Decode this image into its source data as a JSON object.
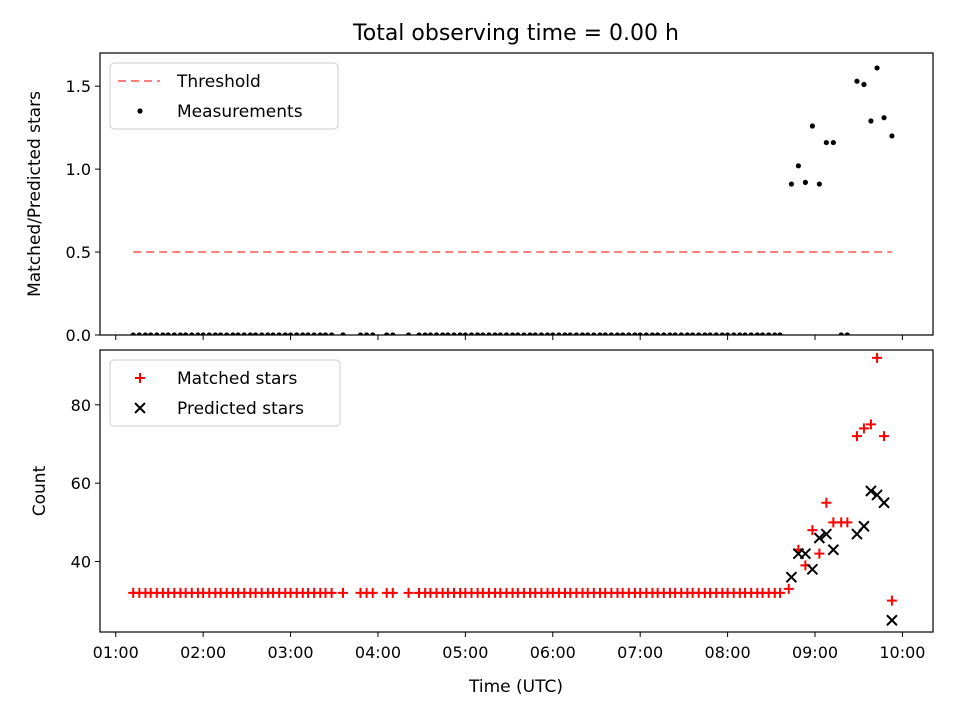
{
  "chart_data": [
    {
      "panel": "top",
      "type": "scatter",
      "title": "Total observing time = 0.00 h",
      "xlabel": "",
      "ylabel": "Matched/Predicted stars",
      "x_unit": "hours UTC",
      "xlim": [
        0.82,
        10.35
      ],
      "ylim": [
        0.0,
        1.7
      ],
      "yticks": [
        0.0,
        0.5,
        1.0,
        1.5
      ],
      "ytick_labels": [
        "0.0",
        "0.5",
        "1.0",
        "1.5"
      ],
      "xtick_labels_visible": false,
      "legend": {
        "position": "upper left",
        "entries": [
          "Threshold",
          "Measurements"
        ]
      },
      "series": [
        {
          "name": "Threshold",
          "kind": "line",
          "style": "dashed",
          "color": "#ff7f7f",
          "x": [
            1.2,
            9.88
          ],
          "y": [
            0.5,
            0.5
          ]
        },
        {
          "name": "Measurements",
          "kind": "points",
          "color": "#000000",
          "points": [
            [
              1.2,
              0
            ],
            [
              1.27,
              0
            ],
            [
              1.34,
              0
            ],
            [
              1.4,
              0
            ],
            [
              1.47,
              0
            ],
            [
              1.54,
              0
            ],
            [
              1.6,
              0
            ],
            [
              1.67,
              0
            ],
            [
              1.74,
              0
            ],
            [
              1.8,
              0
            ],
            [
              1.87,
              0
            ],
            [
              1.94,
              0
            ],
            [
              2.0,
              0
            ],
            [
              2.07,
              0
            ],
            [
              2.14,
              0
            ],
            [
              2.2,
              0
            ],
            [
              2.27,
              0
            ],
            [
              2.34,
              0
            ],
            [
              2.4,
              0
            ],
            [
              2.47,
              0
            ],
            [
              2.54,
              0
            ],
            [
              2.6,
              0
            ],
            [
              2.67,
              0
            ],
            [
              2.74,
              0
            ],
            [
              2.8,
              0
            ],
            [
              2.87,
              0
            ],
            [
              2.94,
              0
            ],
            [
              3.0,
              0
            ],
            [
              3.07,
              0
            ],
            [
              3.14,
              0
            ],
            [
              3.2,
              0
            ],
            [
              3.27,
              0
            ],
            [
              3.34,
              0
            ],
            [
              3.4,
              0
            ],
            [
              3.47,
              0
            ],
            [
              3.6,
              0
            ],
            [
              3.8,
              0
            ],
            [
              3.87,
              0
            ],
            [
              3.94,
              0
            ],
            [
              4.1,
              0
            ],
            [
              4.17,
              0
            ],
            [
              4.35,
              0
            ],
            [
              4.47,
              0
            ],
            [
              4.54,
              0
            ],
            [
              4.6,
              0
            ],
            [
              4.67,
              0
            ],
            [
              4.74,
              0
            ],
            [
              4.8,
              0
            ],
            [
              4.87,
              0
            ],
            [
              4.94,
              0
            ],
            [
              5.0,
              0
            ],
            [
              5.07,
              0
            ],
            [
              5.14,
              0
            ],
            [
              5.2,
              0
            ],
            [
              5.27,
              0
            ],
            [
              5.34,
              0
            ],
            [
              5.4,
              0
            ],
            [
              5.47,
              0
            ],
            [
              5.54,
              0
            ],
            [
              5.6,
              0
            ],
            [
              5.67,
              0
            ],
            [
              5.74,
              0
            ],
            [
              5.8,
              0
            ],
            [
              5.87,
              0
            ],
            [
              5.94,
              0
            ],
            [
              6.0,
              0
            ],
            [
              6.07,
              0
            ],
            [
              6.14,
              0
            ],
            [
              6.2,
              0
            ],
            [
              6.27,
              0
            ],
            [
              6.34,
              0
            ],
            [
              6.4,
              0
            ],
            [
              6.47,
              0
            ],
            [
              6.54,
              0
            ],
            [
              6.6,
              0
            ],
            [
              6.67,
              0
            ],
            [
              6.74,
              0
            ],
            [
              6.8,
              0
            ],
            [
              6.87,
              0
            ],
            [
              6.94,
              0
            ],
            [
              7.0,
              0
            ],
            [
              7.07,
              0
            ],
            [
              7.14,
              0
            ],
            [
              7.2,
              0
            ],
            [
              7.27,
              0
            ],
            [
              7.34,
              0
            ],
            [
              7.4,
              0
            ],
            [
              7.47,
              0
            ],
            [
              7.54,
              0
            ],
            [
              7.6,
              0
            ],
            [
              7.67,
              0
            ],
            [
              7.74,
              0
            ],
            [
              7.8,
              0
            ],
            [
              7.87,
              0
            ],
            [
              7.94,
              0
            ],
            [
              8.0,
              0
            ],
            [
              8.07,
              0
            ],
            [
              8.14,
              0
            ],
            [
              8.2,
              0
            ],
            [
              8.27,
              0
            ],
            [
              8.34,
              0
            ],
            [
              8.4,
              0
            ],
            [
              8.47,
              0
            ],
            [
              8.54,
              0
            ],
            [
              8.6,
              0
            ],
            [
              9.3,
              0
            ],
            [
              9.37,
              0
            ],
            [
              8.73,
              0.91
            ],
            [
              8.81,
              1.02
            ],
            [
              8.89,
              0.92
            ],
            [
              8.97,
              1.26
            ],
            [
              9.05,
              0.91
            ],
            [
              9.13,
              1.16
            ],
            [
              9.21,
              1.16
            ],
            [
              9.48,
              1.53
            ],
            [
              9.56,
              1.51
            ],
            [
              9.64,
              1.29
            ],
            [
              9.71,
              1.61
            ],
            [
              9.79,
              1.31
            ],
            [
              9.88,
              1.2
            ]
          ]
        }
      ]
    },
    {
      "panel": "bottom",
      "type": "scatter",
      "title": "",
      "xlabel": "Time (UTC)",
      "ylabel": "Count",
      "x_unit": "hours UTC",
      "xlim": [
        0.82,
        10.35
      ],
      "ylim": [
        22,
        94
      ],
      "yticks": [
        40,
        60,
        80
      ],
      "ytick_labels": [
        "40",
        "60",
        "80"
      ],
      "xticks": [
        1,
        2,
        3,
        4,
        5,
        6,
        7,
        8,
        9,
        10
      ],
      "xtick_labels": [
        "01:00",
        "02:00",
        "03:00",
        "04:00",
        "05:00",
        "06:00",
        "07:00",
        "08:00",
        "09:00",
        "10:00"
      ],
      "legend": {
        "position": "upper left",
        "entries": [
          "Matched stars",
          "Predicted stars"
        ]
      },
      "series": [
        {
          "name": "Matched stars",
          "marker": "plus",
          "color": "#ff0000",
          "points": [
            [
              1.2,
              32
            ],
            [
              1.27,
              32
            ],
            [
              1.34,
              32
            ],
            [
              1.4,
              32
            ],
            [
              1.47,
              32
            ],
            [
              1.54,
              32
            ],
            [
              1.6,
              32
            ],
            [
              1.67,
              32
            ],
            [
              1.74,
              32
            ],
            [
              1.8,
              32
            ],
            [
              1.87,
              32
            ],
            [
              1.94,
              32
            ],
            [
              2.0,
              32
            ],
            [
              2.07,
              32
            ],
            [
              2.14,
              32
            ],
            [
              2.2,
              32
            ],
            [
              2.27,
              32
            ],
            [
              2.34,
              32
            ],
            [
              2.4,
              32
            ],
            [
              2.47,
              32
            ],
            [
              2.54,
              32
            ],
            [
              2.6,
              32
            ],
            [
              2.67,
              32
            ],
            [
              2.74,
              32
            ],
            [
              2.8,
              32
            ],
            [
              2.87,
              32
            ],
            [
              2.94,
              32
            ],
            [
              3.0,
              32
            ],
            [
              3.07,
              32
            ],
            [
              3.14,
              32
            ],
            [
              3.2,
              32
            ],
            [
              3.27,
              32
            ],
            [
              3.34,
              32
            ],
            [
              3.4,
              32
            ],
            [
              3.47,
              32
            ],
            [
              3.6,
              32
            ],
            [
              3.8,
              32
            ],
            [
              3.87,
              32
            ],
            [
              3.94,
              32
            ],
            [
              4.1,
              32
            ],
            [
              4.17,
              32
            ],
            [
              4.35,
              32
            ],
            [
              4.47,
              32
            ],
            [
              4.54,
              32
            ],
            [
              4.6,
              32
            ],
            [
              4.67,
              32
            ],
            [
              4.74,
              32
            ],
            [
              4.8,
              32
            ],
            [
              4.87,
              32
            ],
            [
              4.94,
              32
            ],
            [
              5.0,
              32
            ],
            [
              5.07,
              32
            ],
            [
              5.14,
              32
            ],
            [
              5.2,
              32
            ],
            [
              5.27,
              32
            ],
            [
              5.34,
              32
            ],
            [
              5.4,
              32
            ],
            [
              5.47,
              32
            ],
            [
              5.54,
              32
            ],
            [
              5.6,
              32
            ],
            [
              5.67,
              32
            ],
            [
              5.74,
              32
            ],
            [
              5.8,
              32
            ],
            [
              5.87,
              32
            ],
            [
              5.94,
              32
            ],
            [
              6.0,
              32
            ],
            [
              6.07,
              32
            ],
            [
              6.14,
              32
            ],
            [
              6.2,
              32
            ],
            [
              6.27,
              32
            ],
            [
              6.34,
              32
            ],
            [
              6.4,
              32
            ],
            [
              6.47,
              32
            ],
            [
              6.54,
              32
            ],
            [
              6.6,
              32
            ],
            [
              6.67,
              32
            ],
            [
              6.74,
              32
            ],
            [
              6.8,
              32
            ],
            [
              6.87,
              32
            ],
            [
              6.94,
              32
            ],
            [
              7.0,
              32
            ],
            [
              7.07,
              32
            ],
            [
              7.14,
              32
            ],
            [
              7.2,
              32
            ],
            [
              7.27,
              32
            ],
            [
              7.34,
              32
            ],
            [
              7.4,
              32
            ],
            [
              7.47,
              32
            ],
            [
              7.54,
              32
            ],
            [
              7.6,
              32
            ],
            [
              7.67,
              32
            ],
            [
              7.74,
              32
            ],
            [
              7.8,
              32
            ],
            [
              7.87,
              32
            ],
            [
              7.94,
              32
            ],
            [
              8.0,
              32
            ],
            [
              8.07,
              32
            ],
            [
              8.14,
              32
            ],
            [
              8.2,
              32
            ],
            [
              8.27,
              32
            ],
            [
              8.34,
              32
            ],
            [
              8.4,
              32
            ],
            [
              8.47,
              32
            ],
            [
              8.54,
              32
            ],
            [
              8.6,
              32
            ],
            [
              8.7,
              33
            ],
            [
              8.81,
              43
            ],
            [
              8.89,
              39
            ],
            [
              8.97,
              48
            ],
            [
              9.05,
              42
            ],
            [
              9.13,
              55
            ],
            [
              9.21,
              50
            ],
            [
              9.3,
              50
            ],
            [
              9.37,
              50
            ],
            [
              9.48,
              72
            ],
            [
              9.56,
              74
            ],
            [
              9.64,
              75
            ],
            [
              9.71,
              92
            ],
            [
              9.79,
              72
            ],
            [
              9.88,
              30
            ]
          ]
        },
        {
          "name": "Predicted stars",
          "marker": "x",
          "color": "#000000",
          "points": [
            [
              8.73,
              36
            ],
            [
              8.81,
              42
            ],
            [
              8.89,
              42
            ],
            [
              8.97,
              38
            ],
            [
              9.05,
              46
            ],
            [
              9.13,
              47
            ],
            [
              9.21,
              43
            ],
            [
              9.48,
              47
            ],
            [
              9.56,
              49
            ],
            [
              9.64,
              58
            ],
            [
              9.71,
              57
            ],
            [
              9.79,
              55
            ],
            [
              9.88,
              25
            ]
          ]
        }
      ]
    }
  ]
}
